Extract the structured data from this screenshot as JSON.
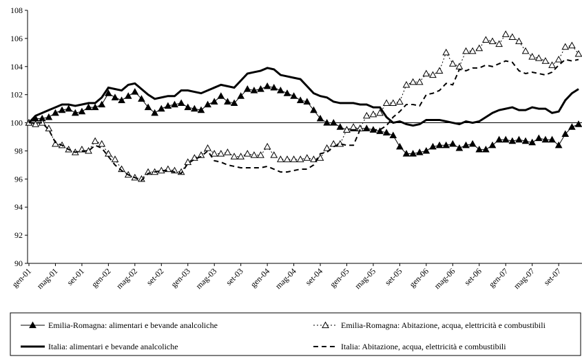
{
  "chart_data": {
    "type": "line",
    "categories": [
      "gen-01",
      null,
      null,
      null,
      "mag-01",
      null,
      null,
      null,
      "set-01",
      null,
      null,
      null,
      "gen-02",
      null,
      null,
      null,
      "mag-02",
      null,
      null,
      null,
      "set-02",
      null,
      null,
      null,
      "gen-03",
      null,
      null,
      null,
      "mag-03",
      null,
      null,
      null,
      "set-03",
      null,
      null,
      null,
      "gen-04",
      null,
      null,
      null,
      "mag-04",
      null,
      null,
      null,
      "set-04",
      null,
      null,
      null,
      "gen-05",
      null,
      null,
      null,
      "mag-05",
      null,
      null,
      null,
      "set-05",
      null,
      null,
      null,
      "gen-06",
      null,
      null,
      null,
      "mag-06",
      null,
      null,
      null,
      "set-06",
      null,
      null,
      null,
      "gen-07",
      null,
      null,
      null,
      "mag-07",
      null,
      null,
      null,
      "set-07",
      null,
      null,
      null
    ],
    "series": [
      {
        "name": "Emilia-Romagna: alimentari e bevande analcoliche",
        "color": "#000000",
        "dash": "solid",
        "width": 1,
        "marker": "triangle-filled",
        "values": [
          100,
          100.3,
          100.3,
          100.4,
          100.7,
          100.9,
          101.0,
          100.7,
          100.8,
          101.1,
          101.1,
          101.3,
          102.1,
          101.8,
          101.6,
          101.9,
          102.2,
          101.7,
          101.1,
          100.7,
          101.0,
          101.2,
          101.3,
          101.4,
          101.1,
          101.0,
          100.9,
          101.3,
          101.5,
          101.9,
          101.5,
          101.4,
          101.9,
          102.4,
          102.3,
          102.4,
          102.6,
          102.5,
          102.3,
          102.1,
          101.9,
          101.6,
          101.5,
          100.9,
          100.3,
          100.0,
          100.0,
          99.7,
          99.5,
          99.6,
          99.6,
          99.6,
          99.5,
          99.4,
          99.3,
          99.1,
          98.3,
          97.8,
          97.8,
          97.9,
          98.0,
          98.3,
          98.4,
          98.4,
          98.5,
          98.2,
          98.4,
          98.5,
          98.1,
          98.1,
          98.4,
          98.8,
          98.8,
          98.7,
          98.8,
          98.7,
          98.6,
          98.9,
          98.8,
          98.8,
          98.4,
          99.2,
          99.7,
          99.9
        ]
      },
      {
        "name": "Emilia-Romagna: Abitazione, acqua, elettricità e combustibili",
        "color": "#000000",
        "dash": "dotted",
        "width": 1,
        "marker": "triangle-open",
        "values": [
          100,
          99.9,
          100.0,
          99.6,
          98.5,
          98.4,
          98.1,
          97.9,
          98.1,
          98.0,
          98.7,
          98.5,
          97.8,
          97.4,
          96.7,
          96.3,
          96.1,
          96.0,
          96.5,
          96.5,
          96.6,
          96.7,
          96.6,
          96.5,
          97.2,
          97.5,
          97.7,
          98.2,
          97.8,
          97.8,
          97.9,
          97.6,
          97.6,
          97.8,
          97.7,
          97.7,
          98.3,
          97.7,
          97.4,
          97.4,
          97.4,
          97.4,
          97.5,
          97.4,
          97.5,
          98.2,
          98.5,
          98.5,
          99.5,
          99.7,
          99.6,
          100.5,
          100.6,
          100.7,
          101.4,
          101.4,
          101.5,
          102.7,
          102.9,
          102.9,
          103.5,
          103.4,
          103.7,
          105.0,
          104.2,
          104.0,
          105.1,
          105.1,
          105.3,
          105.9,
          105.8,
          105.6,
          106.3,
          106.1,
          105.8,
          105.1,
          104.7,
          104.6,
          104.4,
          104.1,
          104.5,
          105.4,
          105.5,
          104.9
        ]
      },
      {
        "name": "Italia: alimentari e bevande analcoliche",
        "color": "#000000",
        "dash": "solid",
        "width": 3,
        "marker": "none",
        "values": [
          100,
          100.5,
          100.7,
          100.9,
          101.1,
          101.3,
          101.3,
          101.2,
          101.3,
          101.4,
          101.4,
          101.8,
          102.5,
          102.4,
          102.3,
          102.7,
          102.8,
          102.4,
          102.0,
          101.7,
          101.8,
          101.9,
          101.9,
          102.3,
          102.3,
          102.2,
          102.1,
          102.3,
          102.5,
          102.7,
          102.6,
          102.5,
          103.0,
          103.5,
          103.6,
          103.7,
          103.9,
          103.8,
          103.4,
          103.3,
          103.2,
          103.1,
          102.6,
          102.1,
          101.9,
          101.8,
          101.5,
          101.4,
          101.4,
          101.4,
          101.3,
          101.3,
          101.1,
          101.1,
          100.4,
          100.0,
          100.1,
          99.9,
          99.8,
          99.9,
          100.2,
          100.2,
          100.2,
          100.1,
          100.0,
          99.9,
          100.1,
          100.0,
          100.1,
          100.4,
          100.7,
          100.9,
          101.0,
          101.1,
          100.9,
          100.9,
          101.1,
          101.0,
          101.0,
          100.7,
          100.8,
          101.6,
          102.1,
          102.4
        ]
      },
      {
        "name": "Italia: Abitazione, acqua, elettricità e combustibili",
        "color": "#000000",
        "dash": "dashed",
        "width": 2,
        "marker": "none",
        "values": [
          100,
          100.0,
          100.0,
          99.5,
          98.6,
          98.4,
          98.1,
          97.9,
          98.0,
          98.0,
          98.4,
          98.2,
          97.6,
          97.0,
          96.6,
          96.3,
          96.1,
          95.9,
          96.4,
          96.5,
          96.6,
          96.6,
          96.5,
          96.4,
          97.1,
          97.4,
          97.6,
          98.0,
          97.3,
          97.2,
          97.0,
          96.9,
          96.8,
          96.8,
          96.8,
          96.8,
          96.9,
          96.7,
          96.5,
          96.5,
          96.6,
          96.7,
          96.7,
          97.0,
          97.8,
          97.9,
          98.3,
          98.5,
          98.4,
          98.4,
          99.5,
          99.5,
          99.5,
          99.5,
          99.8,
          100.4,
          100.8,
          101.3,
          101.3,
          101.2,
          102.0,
          102.1,
          102.3,
          102.8,
          102.7,
          103.8,
          103.7,
          103.9,
          103.9,
          104.1,
          104.0,
          104.2,
          104.4,
          104.3,
          103.7,
          103.5,
          103.6,
          103.5,
          103.4,
          103.6,
          104.1,
          104.5,
          104.4,
          104.5
        ]
      }
    ],
    "ylim": [
      90,
      108
    ],
    "yticks": [
      90,
      92,
      94,
      96,
      98,
      100,
      102,
      104,
      106,
      108
    ],
    "hline": 100,
    "grid": false,
    "legend": "bottom"
  }
}
